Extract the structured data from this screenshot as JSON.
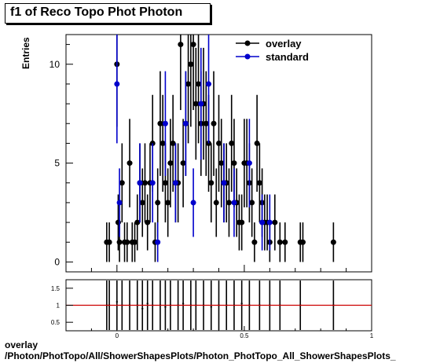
{
  "header": {
    "title": "f1 of Reco Topo Phot Photon"
  },
  "footer": {
    "line1": "overlay",
    "line2": "/Photon/PhotTopo/All/ShowerShapesPlots/Photon_PhotTopo_All_ShowerShapesPlots_"
  },
  "colors": {
    "overlay": "#000000",
    "standard": "#0000cc",
    "ratio_line": "#cc0000",
    "frame": "#000000"
  },
  "chart_data": [
    {
      "type": "scatter",
      "title": "f1 of Reco Topo Phot Photon",
      "xlabel": "",
      "ylabel": "Entries",
      "xlim": [
        -0.2,
        1.0
      ],
      "ylim": [
        -0.5,
        11.5
      ],
      "x_ticks": [
        0,
        0.5,
        1
      ],
      "x_tick_labels": [
        "0",
        "0.5",
        "1"
      ],
      "y_ticks": [
        0,
        5,
        10
      ],
      "y_tick_labels": [
        "0",
        "5",
        "10"
      ],
      "legend": {
        "position": "top-right",
        "entries": [
          "overlay",
          "standard"
        ]
      },
      "series": [
        {
          "name": "overlay",
          "marker": "circle",
          "x": [
            -0.04,
            -0.03,
            0.0,
            0.005,
            0.01,
            0.02,
            0.03,
            0.04,
            0.05,
            0.06,
            0.07,
            0.08,
            0.09,
            0.1,
            0.11,
            0.12,
            0.13,
            0.14,
            0.15,
            0.16,
            0.17,
            0.18,
            0.19,
            0.2,
            0.21,
            0.22,
            0.23,
            0.24,
            0.25,
            0.26,
            0.27,
            0.28,
            0.29,
            0.3,
            0.31,
            0.32,
            0.33,
            0.34,
            0.35,
            0.36,
            0.37,
            0.38,
            0.39,
            0.4,
            0.41,
            0.42,
            0.43,
            0.44,
            0.45,
            0.46,
            0.47,
            0.48,
            0.49,
            0.5,
            0.51,
            0.52,
            0.53,
            0.54,
            0.55,
            0.56,
            0.57,
            0.58,
            0.59,
            0.6,
            0.62,
            0.64,
            0.66,
            0.72,
            0.73,
            0.85
          ],
          "y": [
            1,
            1,
            10,
            2,
            1,
            4,
            1,
            1,
            5,
            1,
            1,
            2,
            4,
            3,
            4,
            2,
            4,
            6,
            1,
            3,
            7,
            6,
            4,
            3,
            5,
            6,
            4,
            4,
            11,
            5,
            7,
            9,
            10,
            11,
            8,
            9,
            7,
            8,
            7,
            6,
            4,
            7,
            3,
            6,
            5,
            4,
            4,
            3,
            6,
            5,
            3,
            2,
            2,
            5,
            5,
            4,
            3,
            1,
            6,
            4,
            3,
            2,
            2,
            1,
            2,
            1,
            1,
            1,
            1,
            1
          ]
        },
        {
          "name": "standard",
          "marker": "circle",
          "x": [
            0.0,
            0.01,
            0.09,
            0.14,
            0.16,
            0.19,
            0.23,
            0.27,
            0.3,
            0.33,
            0.36,
            0.42,
            0.46,
            0.52,
            0.57,
            0.6
          ],
          "y": [
            9,
            3,
            4,
            4,
            1,
            7,
            4,
            7,
            3,
            8,
            9,
            4,
            3,
            5,
            2,
            2
          ]
        }
      ]
    },
    {
      "type": "scatter",
      "title": "",
      "xlabel": "",
      "ylabel": "",
      "xlim": [
        -0.2,
        1.0
      ],
      "ylim": [
        0.25,
        1.75
      ],
      "x_ticks": [
        0,
        0.5,
        1
      ],
      "x_tick_labels": [
        "0",
        "0.5",
        "1"
      ],
      "y_ticks": [
        0.5,
        1,
        1.5
      ],
      "y_tick_labels": [
        "0.5",
        "1",
        "1.5"
      ],
      "reference_line": 1,
      "series": [
        {
          "name": "ratio",
          "marker": "point",
          "x": [
            -0.04,
            -0.03,
            0.0,
            0.02,
            0.05,
            0.08,
            0.1,
            0.12,
            0.14,
            0.17,
            0.19,
            0.21,
            0.24,
            0.26,
            0.29,
            0.31,
            0.34,
            0.37,
            0.4,
            0.43,
            0.46,
            0.49,
            0.52,
            0.56,
            0.6,
            0.64,
            0.72,
            0.85
          ],
          "y": [
            1.0,
            1.0,
            1.1,
            1.0,
            1.0,
            1.0,
            0.9,
            1.05,
            1.0,
            1.0,
            0.95,
            1.0,
            1.0,
            1.05,
            1.0,
            1.0,
            1.0,
            0.95,
            1.0,
            1.0,
            1.0,
            1.05,
            1.0,
            1.0,
            1.0,
            1.0,
            1.0,
            1.0
          ]
        }
      ]
    }
  ]
}
